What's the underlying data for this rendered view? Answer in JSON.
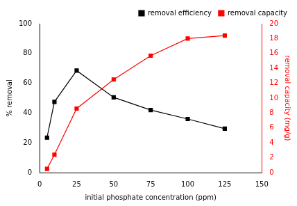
{
  "chart_data": {
    "type": "line",
    "x_label": "initial phosphate concentration (ppm)",
    "y_label": "% removal",
    "y2_label": "removal capacity (mg/g)",
    "x": [
      5,
      10,
      25,
      50,
      75,
      100,
      125
    ],
    "xlim": [
      0,
      150
    ],
    "xticks": [
      0,
      25,
      50,
      75,
      100,
      125,
      150
    ],
    "ylim": [
      0,
      100
    ],
    "yticks": [
      0,
      20,
      40,
      60,
      80,
      100
    ],
    "y2lim": [
      0,
      20
    ],
    "y2ticks": [
      0,
      2,
      4,
      6,
      8,
      10,
      12,
      14,
      16,
      18,
      20
    ],
    "grid": false,
    "legend": "upper right",
    "series": [
      {
        "name": "removal efficiency",
        "color": "#000000",
        "marker": "square",
        "line_style": "solid",
        "values": [
          23.5,
          47.5,
          68.5,
          50.5,
          42,
          36,
          29.5
        ]
      },
      {
        "name": "removal capacity",
        "color": "#ff0000",
        "marker": "square",
        "line_style": "solid",
        "axis": "y2",
        "values": [
          0.5,
          2.4,
          8.6,
          12.5,
          15.7,
          18.0,
          18.4
        ]
      }
    ]
  }
}
